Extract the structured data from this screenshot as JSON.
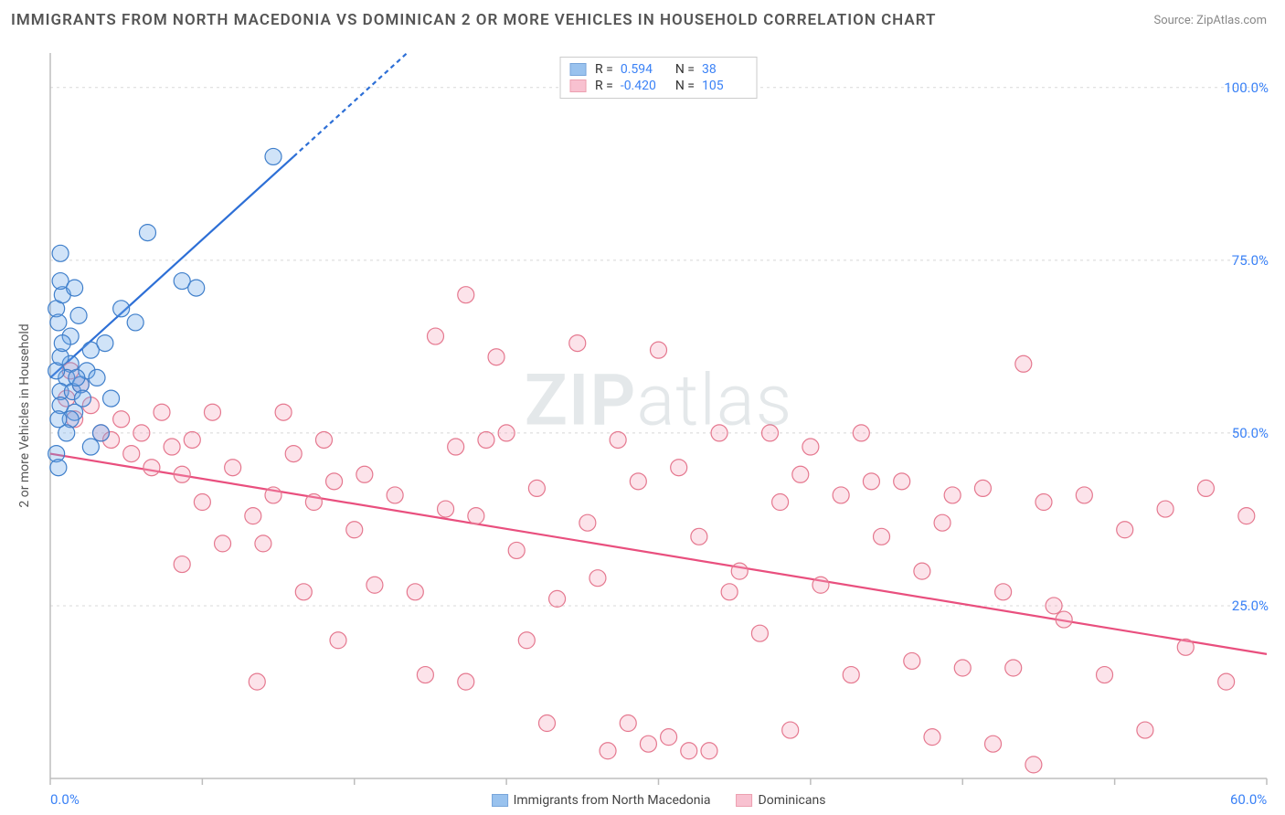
{
  "title": "IMMIGRANTS FROM NORTH MACEDONIA VS DOMINICAN 2 OR MORE VEHICLES IN HOUSEHOLD CORRELATION CHART",
  "source": "Source: ZipAtlas.com",
  "watermark": {
    "bold": "ZIP",
    "light": "atlas"
  },
  "ylabel": "2 or more Vehicles in Household",
  "chart": {
    "type": "scatter",
    "background_color": "#ffffff",
    "grid_color": "#d8d8d8",
    "axis_color": "#bdbdbd",
    "xlim": [
      0,
      60
    ],
    "ylim": [
      0,
      105
    ],
    "y_ticks": [
      25,
      50,
      75,
      100
    ],
    "y_tick_labels": [
      "25.0%",
      "50.0%",
      "75.0%",
      "100.0%"
    ],
    "x_tick_positions": [
      0,
      7.5,
      15,
      22.5,
      30,
      37.5,
      45,
      52.5,
      60
    ],
    "x_tick_labels": {
      "0": "0.0%",
      "60": "60.0%"
    },
    "tick_font_color": "#3b82f6",
    "tick_font_size": 15,
    "label_font_size": 14,
    "label_color": "#555555",
    "point_radius": 9,
    "point_stroke_width": 1.2,
    "point_fill_opacity": 0.32,
    "trend_line_width": 2.2,
    "trend_dash_extension": "5,4"
  },
  "series": [
    {
      "name": "Immigrants from North Macedonia",
      "color": "#6ea9e8",
      "stroke": "#3f7fcb",
      "line_color": "#2d6fd6",
      "R": "0.594",
      "N": "38",
      "trend": {
        "x1": 0,
        "y1": 58,
        "x2": 12,
        "y2": 90,
        "ext_x2": 17.6,
        "ext_y2": 105
      },
      "points": [
        [
          0.5,
          76
        ],
        [
          0.3,
          68
        ],
        [
          0.6,
          70
        ],
        [
          0.5,
          72
        ],
        [
          0.4,
          66
        ],
        [
          1.2,
          71
        ],
        [
          1.0,
          64
        ],
        [
          1.4,
          67
        ],
        [
          1.0,
          60
        ],
        [
          0.8,
          58
        ],
        [
          0.5,
          56
        ],
        [
          0.3,
          59
        ],
        [
          0.5,
          61
        ],
        [
          0.6,
          63
        ],
        [
          1.1,
          56
        ],
        [
          1.5,
          57
        ],
        [
          1.8,
          59
        ],
        [
          2.0,
          62
        ],
        [
          1.2,
          53
        ],
        [
          1.0,
          52
        ],
        [
          0.8,
          50
        ],
        [
          0.5,
          54
        ],
        [
          0.3,
          47
        ],
        [
          0.4,
          45
        ],
        [
          1.6,
          55
        ],
        [
          2.3,
          58
        ],
        [
          2.7,
          63
        ],
        [
          3.5,
          68
        ],
        [
          4.2,
          66
        ],
        [
          4.8,
          79
        ],
        [
          3.0,
          55
        ],
        [
          2.5,
          50
        ],
        [
          2.0,
          48
        ],
        [
          6.5,
          72
        ],
        [
          7.2,
          71
        ],
        [
          11.0,
          90
        ],
        [
          1.3,
          58
        ],
        [
          0.4,
          52
        ]
      ]
    },
    {
      "name": "Dominicans",
      "color": "#f6a8bd",
      "stroke": "#e5788f",
      "line_color": "#e94f7e",
      "R": "-0.420",
      "N": "105",
      "trend": {
        "x1": 0,
        "y1": 47,
        "x2": 60,
        "y2": 18
      },
      "points": [
        [
          1.0,
          59
        ],
        [
          1.5,
          57
        ],
        [
          0.8,
          55
        ],
        [
          1.2,
          52
        ],
        [
          2.0,
          54
        ],
        [
          2.5,
          50
        ],
        [
          3.0,
          49
        ],
        [
          3.5,
          52
        ],
        [
          4.0,
          47
        ],
        [
          4.5,
          50
        ],
        [
          5.0,
          45
        ],
        [
          5.5,
          53
        ],
        [
          6.0,
          48
        ],
        [
          6.5,
          44
        ],
        [
          7.0,
          49
        ],
        [
          8.0,
          53
        ],
        [
          9.0,
          45
        ],
        [
          10.0,
          38
        ],
        [
          10.5,
          34
        ],
        [
          11.0,
          41
        ],
        [
          12.0,
          47
        ],
        [
          13.0,
          40
        ],
        [
          14.0,
          43
        ],
        [
          15.0,
          36
        ],
        [
          16.0,
          28
        ],
        [
          17.0,
          41
        ],
        [
          18.0,
          27
        ],
        [
          19.0,
          64
        ],
        [
          20.5,
          70
        ],
        [
          20.0,
          48
        ],
        [
          21.0,
          38
        ],
        [
          22.0,
          61
        ],
        [
          22.5,
          50
        ],
        [
          23.0,
          33
        ],
        [
          24.0,
          42
        ],
        [
          25.0,
          26
        ],
        [
          26.0,
          63
        ],
        [
          26.5,
          37
        ],
        [
          27.0,
          29
        ],
        [
          28.0,
          49
        ],
        [
          29.0,
          43
        ],
        [
          30.0,
          62
        ],
        [
          30.5,
          6
        ],
        [
          31.0,
          45
        ],
        [
          32.0,
          35
        ],
        [
          33.0,
          50
        ],
        [
          34.0,
          30
        ],
        [
          35.0,
          21
        ],
        [
          36.0,
          40
        ],
        [
          37.0,
          44
        ],
        [
          38.0,
          28
        ],
        [
          39.0,
          41
        ],
        [
          40.0,
          50
        ],
        [
          41.0,
          35
        ],
        [
          42.0,
          43
        ],
        [
          43.0,
          30
        ],
        [
          44.0,
          37
        ],
        [
          45.0,
          16
        ],
        [
          46.0,
          42
        ],
        [
          47.0,
          27
        ],
        [
          48.0,
          60
        ],
        [
          49.0,
          40
        ],
        [
          50.0,
          23
        ],
        [
          51.0,
          41
        ],
        [
          52.0,
          15
        ],
        [
          53.0,
          36
        ],
        [
          54.0,
          7
        ],
        [
          55.0,
          39
        ],
        [
          56.0,
          19
        ],
        [
          57.0,
          42
        ],
        [
          58.0,
          14
        ],
        [
          59.0,
          38
        ],
        [
          10.2,
          14
        ],
        [
          15.5,
          44
        ],
        [
          18.5,
          15
        ],
        [
          14.2,
          20
        ],
        [
          20.5,
          14
        ],
        [
          24.5,
          8
        ],
        [
          21.5,
          49
        ],
        [
          27.5,
          4
        ],
        [
          31.5,
          4
        ],
        [
          32.5,
          4
        ],
        [
          33.5,
          27
        ],
        [
          28.5,
          8
        ],
        [
          29.5,
          5
        ],
        [
          35.5,
          50
        ],
        [
          36.5,
          7
        ],
        [
          37.5,
          48
        ],
        [
          39.5,
          15
        ],
        [
          40.5,
          43
        ],
        [
          43.5,
          6
        ],
        [
          44.5,
          41
        ],
        [
          46.5,
          5
        ],
        [
          48.5,
          2
        ],
        [
          42.5,
          17
        ],
        [
          47.5,
          16
        ],
        [
          49.5,
          25
        ],
        [
          13.5,
          49
        ],
        [
          11.5,
          53
        ],
        [
          8.5,
          34
        ],
        [
          12.5,
          27
        ],
        [
          19.5,
          39
        ],
        [
          23.5,
          20
        ],
        [
          6.5,
          31
        ],
        [
          7.5,
          40
        ]
      ]
    }
  ],
  "legend_bottom": [
    {
      "label": "Immigrants from North Macedonia",
      "series": 0
    },
    {
      "label": "Dominicans",
      "series": 1
    }
  ]
}
